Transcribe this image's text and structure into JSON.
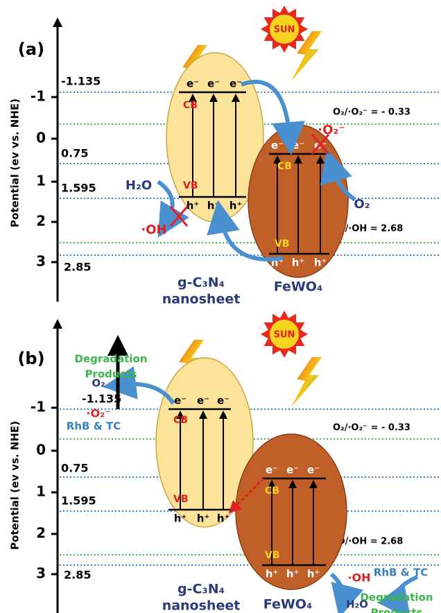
{
  "panels": [
    {
      "label": "(a)",
      "axis_title": "Potential (ev vs. NHE)",
      "ticks": [
        "-1",
        "0",
        "1",
        "2",
        "3"
      ],
      "levels": [
        "-1.135",
        "0.75",
        "1.595",
        "2.85"
      ],
      "redox": [
        "O₂/·O₂⁻ = - 0.33",
        "H₂O/·OH = 2.68"
      ],
      "sun": "SUN",
      "semiconductors": [
        {
          "name": [
            "g-C₃N₄",
            "nanosheet"
          ],
          "cb": "CB",
          "vb": "VB",
          "electrons": [
            "e⁻",
            "e⁻",
            "e⁻"
          ],
          "holes": [
            "h⁺",
            "h⁺",
            "h⁺"
          ]
        },
        {
          "name": [
            "FeWO₄"
          ],
          "cb": "CB",
          "vb": "VB",
          "electrons": [
            "e⁻",
            "e⁻",
            "e⁻"
          ],
          "holes": [
            "h⁺",
            "h⁺",
            "h⁺"
          ]
        }
      ],
      "species": [
        [
          "H₂O"
        ],
        [
          "·OH"
        ],
        [
          "O₂"
        ],
        [
          "·O₂⁻"
        ]
      ]
    },
    {
      "label": "(b)",
      "axis_title": "Potential (ev vs. NHE)",
      "ticks": [
        "-1",
        "0",
        "1",
        "2",
        "3"
      ],
      "levels": [
        "-1.135",
        "0.75",
        "1.595",
        "2.85"
      ],
      "redox": [
        "O₂/·O₂⁻ = - 0.33",
        "H₂O/·OH = 2.68"
      ],
      "sun": "SUN",
      "semiconductors": [
        {
          "name": [
            "g-C₃N₄",
            "nanosheet"
          ],
          "cb": "CB",
          "vb": "VB",
          "electrons": [
            "e⁻",
            "e⁻",
            "e⁻"
          ],
          "holes": [
            "h⁺",
            "h⁺",
            "h⁺"
          ]
        },
        {
          "name": [
            "FeWO₄"
          ],
          "cb": "CB",
          "vb": "VB",
          "electrons": [
            "e⁻",
            "e⁻",
            "e⁻"
          ],
          "holes": [
            "h⁺",
            "h⁺",
            "h⁺"
          ]
        }
      ],
      "species": [
        [
          "Degradation",
          "Products"
        ],
        [
          "O₂"
        ],
        [
          "·O₂⁻"
        ],
        [
          "RhB & TC"
        ],
        [
          "·OH"
        ],
        [
          "RhB & TC"
        ],
        [
          "Degradation",
          "Products"
        ],
        [
          "H₂O"
        ]
      ]
    }
  ]
}
